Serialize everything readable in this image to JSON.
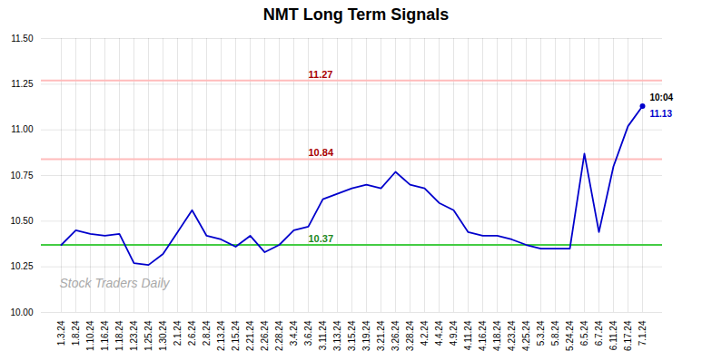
{
  "chart_data": {
    "type": "line",
    "title": "NMT Long Term Signals",
    "color": "#0000cc",
    "categories": [
      "1.3.24",
      "1.8.24",
      "1.10.24",
      "1.16.24",
      "1.18.24",
      "1.23.24",
      "1.25.24",
      "1.30.24",
      "2.1.24",
      "2.6.24",
      "2.8.24",
      "2.13.24",
      "2.15.24",
      "2.21.24",
      "2.26.24",
      "2.28.24",
      "3.4.24",
      "3.6.24",
      "3.11.24",
      "3.13.24",
      "3.15.24",
      "3.19.24",
      "3.21.24",
      "3.26.24",
      "3.28.24",
      "4.2.24",
      "4.4.24",
      "4.9.24",
      "4.11.24",
      "4.16.24",
      "4.18.24",
      "4.23.24",
      "4.25.24",
      "5.3.24",
      "5.8.24",
      "5.24.24",
      "6.5.24",
      "6.7.24",
      "6.11.24",
      "6.17.24",
      "7.1.24"
    ],
    "values": [
      10.37,
      10.45,
      10.43,
      10.42,
      10.43,
      10.27,
      10.26,
      10.32,
      10.44,
      10.56,
      10.42,
      10.4,
      10.36,
      10.42,
      10.33,
      10.37,
      10.45,
      10.47,
      10.62,
      10.65,
      10.68,
      10.7,
      10.68,
      10.77,
      10.7,
      10.68,
      10.6,
      10.56,
      10.44,
      10.42,
      10.42,
      10.4,
      10.37,
      10.35,
      10.35,
      10.35,
      10.87,
      10.44,
      10.8,
      11.02,
      11.13
    ],
    "ylim": [
      10.0,
      11.5
    ],
    "yticks": [
      {
        "value": 10.0,
        "label": "10.00"
      },
      10.25,
      {
        "value": 10.5,
        "label": "10.50"
      },
      10.75,
      {
        "value": 11.0,
        "label": "11.00"
      },
      11.25,
      {
        "value": 11.5,
        "label": "11.50"
      }
    ],
    "grid": true,
    "reference_lines": [
      {
        "value": 11.27,
        "label": "11.27",
        "color": "#ffbbbb",
        "label_color": "#aa0000"
      },
      {
        "value": 10.84,
        "label": "10.84",
        "color": "#ffbbbb",
        "label_color": "#aa0000"
      },
      {
        "value": 10.37,
        "label": "10.37",
        "color": "#44cc44",
        "label_color": "#228822"
      }
    ],
    "annotations": [
      {
        "text": "10:04",
        "x": "7.1.24",
        "y": 11.13,
        "color": "#000000"
      },
      {
        "text": "11.13",
        "x": "7.1.24",
        "y": 11.13,
        "color": "#0000cc"
      },
      {
        "text": "Stock Traders Daily",
        "color": "#aaaaaa"
      }
    ]
  }
}
